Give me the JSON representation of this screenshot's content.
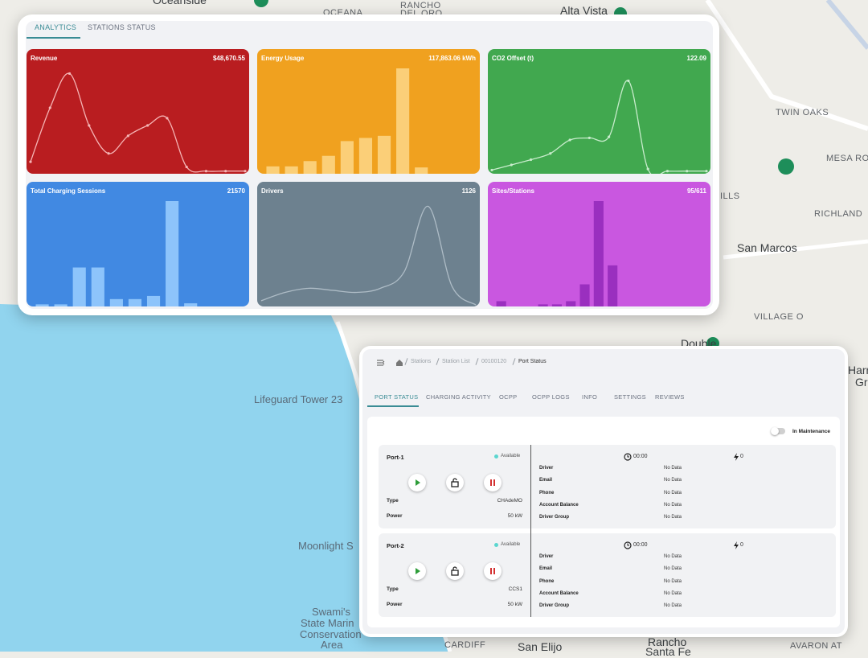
{
  "map_labels": [
    "Oceanside",
    "OCEANA",
    "RANCHO",
    "DEL ORO",
    "Alta Vista",
    "TWIN OAKS",
    "MESA ROCK",
    "ILLS",
    "RICHLAND",
    "San Marcos",
    "VILLAGE O",
    "Double",
    "Harr",
    "Gr",
    "Lifeguard Tower 23",
    "Moonlight S",
    "Swami's",
    "State Marin",
    "Conservation",
    "Area",
    "CARDIFF",
    "San Elijo",
    "Rancho",
    "Santa Fe",
    "AVARON AT"
  ],
  "analytics": {
    "tabs": [
      "ANALYTICS",
      "STATIONS STATUS"
    ],
    "cards": [
      {
        "title": "Revenue",
        "value": "$48,670.55",
        "color": "#b91d20",
        "chart": {
          "type": "line",
          "dots": true,
          "color": "#f5b5b5",
          "ylim": [
            0,
            100
          ],
          "values": [
            10,
            62,
            95,
            45,
            18,
            35,
            45,
            52,
            5,
            1,
            1,
            1
          ]
        }
      },
      {
        "title": "Energy Usage",
        "value": "117,863.06 kWh",
        "color": "#f0a11f",
        "chart": {
          "type": "bar",
          "color": "#fbcf78",
          "ylim": [
            0,
            100
          ],
          "values": [
            7,
            7,
            12,
            17,
            31,
            34,
            36,
            100,
            6
          ]
        }
      },
      {
        "title": "CO2 Offset (t)",
        "value": "122.09",
        "color": "#41a84f",
        "chart": {
          "type": "line",
          "dots": true,
          "color": "#c8eccc",
          "ylim": [
            0,
            100
          ],
          "values": [
            2,
            7,
            12,
            18,
            31,
            33,
            34,
            88,
            3,
            1,
            1,
            1
          ]
        }
      },
      {
        "title": "Total Charging Sessions",
        "value": "21570",
        "color": "#4189e2",
        "chart": {
          "type": "bar",
          "color": "#8dc4fb",
          "ylim": [
            0,
            100
          ],
          "values": [
            2,
            2,
            37,
            37,
            7,
            7,
            10,
            100,
            3
          ]
        }
      },
      {
        "title": "Drivers",
        "value": "1126",
        "color": "#6d818f",
        "chart": {
          "type": "line",
          "dots": false,
          "color": "#aebcc6",
          "ylim": [
            0,
            100
          ],
          "values": [
            4,
            12,
            16,
            14,
            12,
            16,
            32,
            95,
            18,
            0
          ]
        }
      },
      {
        "title": "Sites/Stations",
        "value": "95/611",
        "color": "#c957e0",
        "chart": {
          "type": "bar",
          "color": "#9a2fbf",
          "ylim": [
            0,
            100
          ],
          "values": [
            5,
            0,
            0,
            2,
            2,
            5,
            21,
            100,
            39,
            0,
            0,
            0
          ]
        }
      }
    ]
  },
  "station": {
    "breadcrumb": [
      "Stations",
      "Station List",
      "00100120",
      "Port Status"
    ],
    "tabs": [
      "PORT STATUS",
      "CHARGING ACTIVITY",
      "OCPP",
      "OCPP LOGS",
      "INFO",
      "SETTINGS",
      "REVIEWS"
    ],
    "maintenance_label": "In Maintenance",
    "ports": [
      {
        "name": "Port-1",
        "status": "Available",
        "type_label": "Type",
        "type": "CHAdeMO",
        "power_label": "Power",
        "power": "50 kW",
        "time": "00:00",
        "count": "0",
        "fields": [
          {
            "label": "Driver",
            "value": "No Data"
          },
          {
            "label": "Email",
            "value": "No Data"
          },
          {
            "label": "Phone",
            "value": "No Data"
          },
          {
            "label": "Account Balance",
            "value": "No Data"
          },
          {
            "label": "Driver Group",
            "value": "No Data"
          }
        ]
      },
      {
        "name": "Port-2",
        "status": "Available",
        "type_label": "Type",
        "type": "CCS1",
        "power_label": "Power",
        "power": "50 kW",
        "time": "00:00",
        "count": "0",
        "fields": [
          {
            "label": "Driver",
            "value": "No Data"
          },
          {
            "label": "Email",
            "value": "No Data"
          },
          {
            "label": "Phone",
            "value": "No Data"
          },
          {
            "label": "Account Balance",
            "value": "No Data"
          },
          {
            "label": "Driver Group",
            "value": "No Data"
          }
        ]
      }
    ]
  }
}
